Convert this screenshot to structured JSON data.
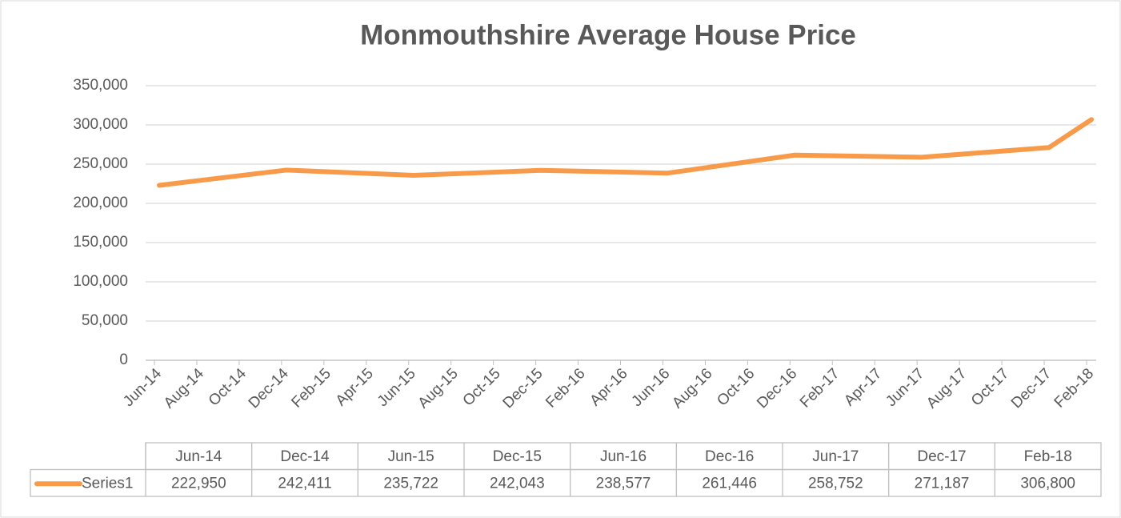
{
  "chart_data": {
    "type": "line",
    "title": "Monmouthshire Average House Price",
    "x": [
      "Jun-14",
      "Dec-14",
      "Jun-15",
      "Dec-15",
      "Jun-16",
      "Dec-16",
      "Jun-17",
      "Dec-17",
      "Feb-18"
    ],
    "xticks": [
      "Jun-14",
      "Aug-14",
      "Oct-14",
      "Dec-14",
      "Feb-15",
      "Apr-15",
      "Jun-15",
      "Aug-15",
      "Oct-15",
      "Dec-15",
      "Feb-16",
      "Apr-16",
      "Jun-16",
      "Aug-16",
      "Oct-16",
      "Dec-16",
      "Feb-17",
      "Apr-17",
      "Jun-17",
      "Aug-17",
      "Oct-17",
      "Dec-17",
      "Feb-18"
    ],
    "series": [
      {
        "name": "Series1",
        "color": "#f79a4a",
        "values": [
          222950,
          242411,
          235722,
          242043,
          238577,
          261446,
          258752,
          271187,
          306800
        ],
        "value_labels": [
          "222,950",
          "242,411",
          "235,722",
          "242,043",
          "238,577",
          "261,446",
          "258,752",
          "271,187",
          "306,800"
        ]
      }
    ],
    "ylim": [
      0,
      350000
    ],
    "yticks": [
      0,
      {
        "value": 50000,
        "label": "50,000"
      },
      {
        "value": 100000,
        "label": "100,000"
      },
      {
        "value": 150000,
        "label": "150,000"
      },
      {
        "value": 200000,
        "label": "200,000"
      },
      {
        "value": 250000,
        "label": "250,000"
      },
      {
        "value": 300000,
        "label": "300,000"
      },
      {
        "value": 350000,
        "label": "350,000"
      }
    ],
    "grid": true
  }
}
